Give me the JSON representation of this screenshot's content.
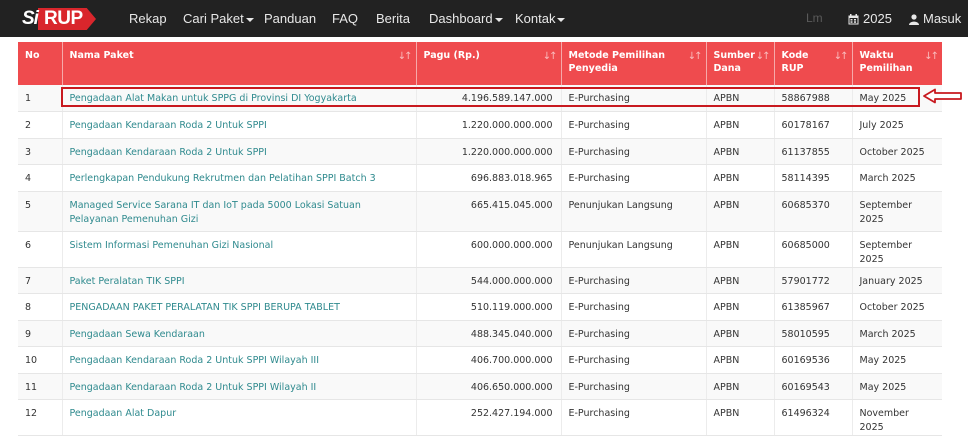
{
  "navbar": {
    "logo_si": "Si",
    "logo_rup": "RUP",
    "items": [
      {
        "label": "Rekap",
        "dropdown": false
      },
      {
        "label": "Cari Paket",
        "dropdown": true
      },
      {
        "label": "Panduan",
        "dropdown": false
      },
      {
        "label": "FAQ",
        "dropdown": false
      },
      {
        "label": "Berita",
        "dropdown": false
      },
      {
        "label": "Dashboard",
        "dropdown": true
      },
      {
        "label": "Kontak",
        "dropdown": true
      }
    ],
    "faint_text": "Lm",
    "year_label": "2025",
    "login_label": "Masuk"
  },
  "table": {
    "headers": [
      {
        "label": "No",
        "sortable": false
      },
      {
        "label": "Nama Paket",
        "sortable": true
      },
      {
        "label": "Pagu (Rp.)",
        "sortable": true
      },
      {
        "label": "Metode Pemilihan Penyedia",
        "sortable": true
      },
      {
        "label": "Sumber Dana",
        "sortable": true
      },
      {
        "label": "Kode RUP",
        "sortable": true
      },
      {
        "label": "Waktu Pemilihan",
        "sortable": true
      }
    ],
    "rows": [
      {
        "no": "1",
        "nama": "Pengadaan Alat Makan untuk SPPG di Provinsi DI Yogyakarta",
        "pagu": "4.196.589.147.000",
        "metode": "E-Purchasing",
        "sumber": "APBN",
        "kode": "58867988",
        "waktu": "May 2025"
      },
      {
        "no": "2",
        "nama": "Pengadaan Kendaraan Roda 2 Untuk SPPI",
        "pagu": "1.220.000.000.000",
        "metode": "E-Purchasing",
        "sumber": "APBN",
        "kode": "60178167",
        "waktu": "July 2025"
      },
      {
        "no": "3",
        "nama": "Pengadaan Kendaraan Roda 2 Untuk SPPI",
        "pagu": "1.220.000.000.000",
        "metode": "E-Purchasing",
        "sumber": "APBN",
        "kode": "61137855",
        "waktu": "October 2025"
      },
      {
        "no": "4",
        "nama": "Perlengkapan Pendukung Rekrutmen dan Pelatihan SPPI Batch 3",
        "pagu": "696.883.018.965",
        "metode": "E-Purchasing",
        "sumber": "APBN",
        "kode": "58114395",
        "waktu": "March 2025"
      },
      {
        "no": "5",
        "nama": "Managed Service Sarana IT dan IoT pada 5000 Lokasi Satuan Pelayanan Pemenuhan Gizi",
        "pagu": "665.415.045.000",
        "metode": "Penunjukan Langsung",
        "sumber": "APBN",
        "kode": "60685370",
        "waktu": "September 2025"
      },
      {
        "no": "6",
        "nama": "Sistem Informasi Pemenuhan Gizi Nasional",
        "pagu": "600.000.000.000",
        "metode": "Penunjukan Langsung",
        "sumber": "APBN",
        "kode": "60685000",
        "waktu": "September 2025"
      },
      {
        "no": "7",
        "nama": "Paket Peralatan TIK SPPI",
        "pagu": "544.000.000.000",
        "metode": "E-Purchasing",
        "sumber": "APBN",
        "kode": "57901772",
        "waktu": "January 2025"
      },
      {
        "no": "8",
        "nama": "PENGADAAN PAKET PERALATAN TIK SPPI BERUPA TABLET",
        "pagu": "510.119.000.000",
        "metode": "E-Purchasing",
        "sumber": "APBN",
        "kode": "61385967",
        "waktu": "October 2025"
      },
      {
        "no": "9",
        "nama": "Pengadaan Sewa Kendaraan",
        "pagu": "488.345.040.000",
        "metode": "E-Purchasing",
        "sumber": "APBN",
        "kode": "58010595",
        "waktu": "March 2025"
      },
      {
        "no": "10",
        "nama": "Pengadaan Kendaraan Roda 2 Untuk SPPI Wilayah III",
        "pagu": "406.700.000.000",
        "metode": "E-Purchasing",
        "sumber": "APBN",
        "kode": "60169536",
        "waktu": "May 2025"
      },
      {
        "no": "11",
        "nama": "Pengadaan Kendaraan Roda 2 Untuk SPPI Wilayah II",
        "pagu": "406.650.000.000",
        "metode": "E-Purchasing",
        "sumber": "APBN",
        "kode": "60169543",
        "waktu": "May 2025"
      },
      {
        "no": "12",
        "nama": "Pengadaan Alat Dapur",
        "pagu": "252.427.194.000",
        "metode": "E-Purchasing",
        "sumber": "APBN",
        "kode": "61496324",
        "waktu": "November 2025"
      }
    ]
  },
  "colors": {
    "navbar_bg": "#222222",
    "header_bg": "#ef4b4e",
    "brand_red": "#d9262c",
    "link_teal": "#2f8a8e",
    "highlight_red": "#c8191f"
  },
  "icons": {
    "calendar": "calendar-icon",
    "user": "user-icon",
    "sort": "sort-icon",
    "annotation": "arrow-left-icon"
  }
}
